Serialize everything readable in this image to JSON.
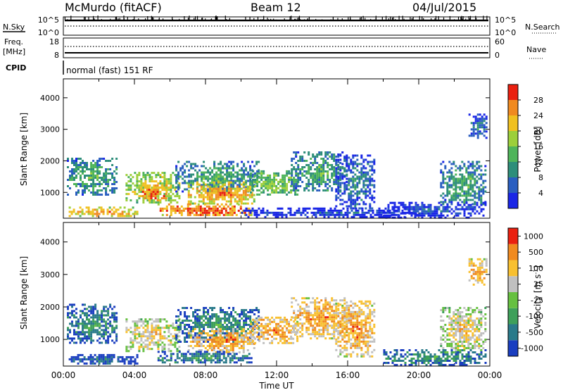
{
  "header": {
    "station": "McMurdo (fitACF)",
    "beam": "Beam 12",
    "date": "04/Jul/2015"
  },
  "status_panels": {
    "nsky_label": "N.Sky",
    "nsky_ticks": [
      "10^5",
      "10^0"
    ],
    "nsearch_label": "N.Search",
    "nsearch_ticks": [
      "10^5",
      "10^0"
    ],
    "freq_label": "Freq.",
    "freq_unit": "[MHz]",
    "freq_ticks": [
      "18",
      "8"
    ],
    "nave_label": "Nave",
    "nave_ticks": [
      "60",
      "0"
    ],
    "cpid_label": "CPID",
    "cpid_value": "normal (fast) 151 RF"
  },
  "chart_data": [
    {
      "type": "heatmap",
      "name": "power",
      "ylabel": "Slant Range [km]",
      "xlabel": "",
      "ylim": [
        180,
        4600
      ],
      "yticks": [
        "1000",
        "2000",
        "3000",
        "4000"
      ],
      "xlim_hours": [
        0,
        24
      ],
      "colorbar": {
        "label": "Power [dB]",
        "ticks": [
          "4",
          "8",
          "12",
          "16",
          "20",
          "24",
          "28"
        ],
        "colors": [
          "#1a26e6",
          "#2a5ec0",
          "#2e8e7a",
          "#4fb45a",
          "#9ccf3a",
          "#f0c020",
          "#f08a20",
          "#ea2010"
        ]
      },
      "patches": [
        {
          "t0": 0.2,
          "t1": 3.0,
          "r0": 900,
          "r1": 2100,
          "level": 3
        },
        {
          "t0": 3.5,
          "t1": 6.5,
          "r0": 650,
          "r1": 1650,
          "level": 5
        },
        {
          "t0": 4.3,
          "t1": 5.8,
          "r0": 750,
          "r1": 1250,
          "level": 7
        },
        {
          "t0": 6.3,
          "t1": 11.0,
          "r0": 1000,
          "r1": 2000,
          "level": 3
        },
        {
          "t0": 7.0,
          "t1": 10.8,
          "r0": 620,
          "r1": 1350,
          "level": 6
        },
        {
          "t0": 5.3,
          "t1": 10.6,
          "r0": 280,
          "r1": 650,
          "level": 7
        },
        {
          "t0": 0.3,
          "t1": 4.2,
          "r0": 250,
          "r1": 550,
          "level": 6
        },
        {
          "t0": 10.5,
          "t1": 13.2,
          "r0": 900,
          "r1": 1700,
          "level": 4
        },
        {
          "t0": 12.8,
          "t1": 16.0,
          "r0": 1050,
          "r1": 2300,
          "level": 3
        },
        {
          "t0": 15.3,
          "t1": 17.5,
          "r0": 500,
          "r1": 2200,
          "level": 2
        },
        {
          "t0": 10.0,
          "t1": 20.0,
          "r0": 230,
          "r1": 520,
          "level": 1
        },
        {
          "t0": 21.2,
          "t1": 23.8,
          "r0": 600,
          "r1": 2000,
          "level": 3
        },
        {
          "t0": 22.8,
          "t1": 23.8,
          "r0": 2700,
          "r1": 3500,
          "level": 2
        },
        {
          "t0": 18.0,
          "t1": 23.8,
          "r0": 230,
          "r1": 700,
          "level": 1
        }
      ]
    },
    {
      "type": "heatmap",
      "name": "velocity",
      "ylabel": "Slant Range [km]",
      "xlabel": "Time UT",
      "ylim": [
        180,
        4600
      ],
      "yticks": [
        "1000",
        "2000",
        "3000",
        "4000"
      ],
      "xticks": [
        "00:00",
        "04:00",
        "08:00",
        "12:00",
        "16:00",
        "20:00",
        "00:00"
      ],
      "xlim_hours": [
        0,
        24
      ],
      "colorbar": {
        "label": "Velocity [m s",
        "label_exp": "-1",
        "label_close": "]",
        "ticks": [
          "1000",
          "500",
          "100",
          "25",
          "-25",
          "-100",
          "-500",
          "-1000"
        ],
        "colors": [
          "#1a3ec0",
          "#2a7a8a",
          "#3ea05a",
          "#66c040",
          "#c0c0c0",
          "#f8c030",
          "#f08a20",
          "#ea2010"
        ]
      },
      "patches": [
        {
          "t0": 0.2,
          "t1": 3.0,
          "r0": 900,
          "r1": 2100,
          "level": 2
        },
        {
          "t0": 3.5,
          "t1": 6.5,
          "r0": 650,
          "r1": 1650,
          "level": 5
        },
        {
          "t0": 6.3,
          "t1": 11.0,
          "r0": 950,
          "r1": 2000,
          "level": 2
        },
        {
          "t0": 7.0,
          "t1": 10.8,
          "r0": 620,
          "r1": 1350,
          "level": 6
        },
        {
          "t0": 5.3,
          "t1": 10.6,
          "r0": 280,
          "r1": 650,
          "level": 2
        },
        {
          "t0": 0.3,
          "t1": 4.2,
          "r0": 250,
          "r1": 550,
          "level": 1
        },
        {
          "t0": 10.5,
          "t1": 13.2,
          "r0": 900,
          "r1": 1700,
          "level": 6
        },
        {
          "t0": 12.8,
          "t1": 16.0,
          "r0": 1050,
          "r1": 2300,
          "level": 6
        },
        {
          "t0": 15.3,
          "t1": 17.5,
          "r0": 500,
          "r1": 2200,
          "level": 6
        },
        {
          "t0": 21.2,
          "t1": 23.8,
          "r0": 600,
          "r1": 2000,
          "level": 5
        },
        {
          "t0": 22.8,
          "t1": 23.8,
          "r0": 2700,
          "r1": 3500,
          "level": 6
        },
        {
          "t0": 18.0,
          "t1": 23.8,
          "r0": 230,
          "r1": 700,
          "level": 2
        }
      ]
    }
  ]
}
